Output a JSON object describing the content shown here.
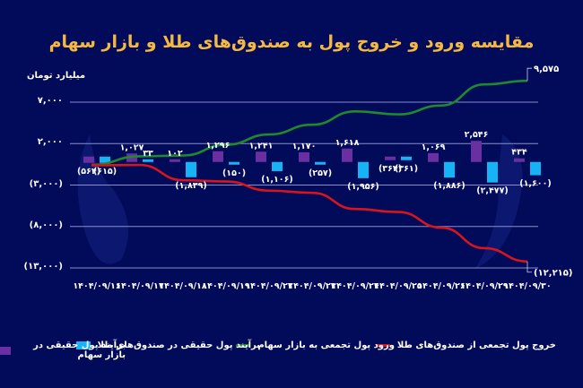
{
  "title": "مقایسه ورود و خروج پول به صندوق‌های طلا و بازار سهام",
  "unit_label": "میلیارد تومان",
  "colors": {
    "background": "#020a5a",
    "title": "#f5b942",
    "stock_bar": "#6a2fa0",
    "gold_bar": "#17b4f5",
    "stock_cum_line": "#1e8a2c",
    "gold_cum_line": "#d8141c",
    "grid": "#8a8fc8"
  },
  "legend": [
    {
      "label": "خروج پول تجمعی از صندوق‌های طلا",
      "type": "line",
      "color": "#d8141c"
    },
    {
      "label": "ورود پول تجمعی به بازار سهام",
      "type": "line",
      "color": "#1e8a2c"
    },
    {
      "label": "برآیند پول حقیقی در صندوق‌های طلا",
      "type": "bar",
      "color": "#17b4f5"
    },
    {
      "label": "برآیند پول حقیقی در بازار سهام",
      "type": "bar",
      "color": "#6a2fa0"
    }
  ],
  "chart_data": {
    "type": "bar",
    "title": "مقایسه ورود و خروج پول به صندوق‌های طلا و بازار سهام",
    "xlabel": "",
    "ylabel": "میلیارد تومان",
    "ylim": [
      -13000,
      7000
    ],
    "grid": true,
    "legend_position": "bottom",
    "y_ticks": [
      7000,
      2000,
      -3000,
      -8000,
      -13000
    ],
    "y_tick_labels": [
      "۷,۰۰۰",
      "۲,۰۰۰",
      "(۳,۰۰۰)",
      "(۸,۰۰۰)",
      "(۱۳,۰۰۰)"
    ],
    "categories": [
      "۱۴۰۴/۰۹/۱۶",
      "۱۴۰۴/۰۹/۱۷",
      "۱۴۰۴/۰۹/۱۸",
      "۱۴۰۴/۰۹/۱۹",
      "۱۴۰۴/۰۹/۲۲",
      "۱۴۰۴/۰۹/۲۳",
      "۱۴۰۴/۰۹/۲۴",
      "۱۴۰۴/۰۹/۲۵",
      "۱۴۰۴/۰۹/۲۶",
      "۱۴۰۴/۰۹/۲۹",
      "۱۴۰۴/۰۹/۳۰"
    ],
    "series": [
      {
        "name": "برآیند پول حقیقی در بازار سهام",
        "kind": "bar",
        "values": [
          -564,
          1027,
          102,
          1296,
          1241,
          1170,
          1618,
          -364,
          1069,
          2546,
          434
        ],
        "labels": [
          "(۵۶۴)",
          "۱,۰۲۷",
          "۱۰۲",
          "۱,۲۹۶",
          "۱,۲۴۱",
          "۱,۱۷۰",
          "۱,۶۱۸",
          "(۳۶۴)",
          "۱,۰۶۹",
          "۲,۵۴۶",
          "۴۳۴"
        ]
      },
      {
        "name": "برآیند پول حقیقی در صندوق‌های طلا",
        "kind": "bar",
        "values": [
          -615,
          33,
          -1839,
          -150,
          -1106,
          -257,
          -1956,
          -361,
          -1886,
          -2477,
          -1600
        ],
        "labels": [
          "(۶۱۵)",
          "۳۳",
          "(۱,۸۳۹)",
          "(۱۵۰)",
          "(۱,۱۰۶)",
          "(۲۵۷)",
          "(۱,۹۵۶)",
          "(۳۶۱)",
          "(۱,۸۸۶)",
          "(۲,۴۷۷)",
          "(۱,۶۰۰)"
        ]
      },
      {
        "name": "ورود پول تجمعی به بازار سهام",
        "kind": "line",
        "values": [
          -564,
          463,
          565,
          1861,
          3102,
          4272,
          5890,
          5526,
          6595,
          9141,
          9575
        ],
        "end_label": "۹,۵۷۵"
      },
      {
        "name": "خروج پول تجمعی از صندوق‌های طلا",
        "kind": "line",
        "values": [
          -615,
          -582,
          -2421,
          -2571,
          -3677,
          -3934,
          -5890,
          -6251,
          -8137,
          -10614,
          -12215
        ],
        "end_label": "(۱۲,۲۱۵)"
      }
    ]
  }
}
